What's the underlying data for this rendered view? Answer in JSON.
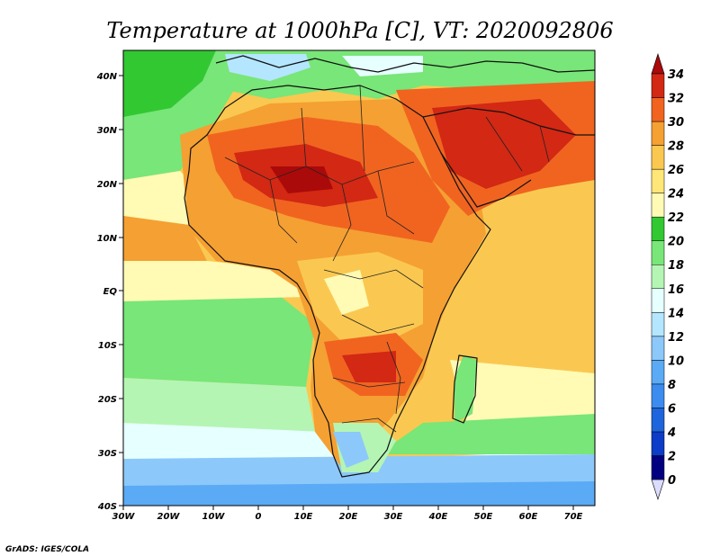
{
  "title": "Temperature at 1000hPa [C], VT: 2020092806",
  "footer": "GrADS: IGES/COLA",
  "axes": {
    "x_ticks": [
      "30W",
      "20W",
      "10W",
      "0",
      "10E",
      "20E",
      "30E",
      "40E",
      "50E",
      "60E",
      "70E"
    ],
    "y_ticks": [
      "40N",
      "30N",
      "20N",
      "10N",
      "EQ",
      "10S",
      "20S",
      "30S",
      "40S"
    ]
  },
  "colorbar": {
    "levels": [
      "0",
      "2",
      "4",
      "6",
      "8",
      "10",
      "12",
      "14",
      "16",
      "18",
      "20",
      "22",
      "24",
      "26",
      "28",
      "30",
      "32",
      "34"
    ],
    "colors": [
      "#dcdcff",
      "#000080",
      "#0c3cc8",
      "#1e64dc",
      "#3c8cf0",
      "#5aaaf5",
      "#8cc8fa",
      "#b4e6ff",
      "#e6ffff",
      "#b4f5b4",
      "#78e678",
      "#32c832",
      "#fffab4",
      "#ffe678",
      "#fac850",
      "#f5a032",
      "#f06420",
      "#d22814",
      "#aa0a0a"
    ]
  }
}
